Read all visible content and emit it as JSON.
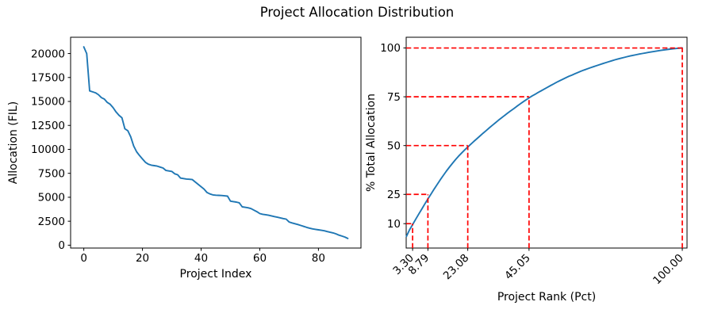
{
  "figure": {
    "title": "Project Allocation Distribution",
    "background": "#ffffff",
    "line_color": "#1f77b4",
    "ref_color": "#ff0000",
    "spine_color": "#000000"
  },
  "chart_data": [
    {
      "type": "line",
      "name": "allocation-by-project-index",
      "xlabel": "Project Index",
      "ylabel": "Allocation (FIL)",
      "color": "#1f77b4",
      "grid": false,
      "x_start": 0,
      "values": [
        20700,
        20000,
        16100,
        16000,
        15900,
        15700,
        15400,
        15250,
        14900,
        14700,
        14350,
        13900,
        13550,
        13300,
        12150,
        11950,
        11300,
        10350,
        9750,
        9350,
        9000,
        8650,
        8450,
        8350,
        8300,
        8250,
        8150,
        8050,
        7800,
        7750,
        7700,
        7450,
        7350,
        7000,
        6950,
        6900,
        6880,
        6850,
        6600,
        6350,
        6100,
        5850,
        5500,
        5350,
        5250,
        5220,
        5200,
        5180,
        5150,
        5120,
        4600,
        4550,
        4500,
        4420,
        4000,
        3950,
        3900,
        3820,
        3650,
        3500,
        3300,
        3220,
        3180,
        3120,
        3060,
        2980,
        2920,
        2850,
        2780,
        2720,
        2420,
        2320,
        2240,
        2160,
        2060,
        1960,
        1860,
        1780,
        1700,
        1650,
        1600,
        1550,
        1500,
        1420,
        1350,
        1280,
        1180,
        1050,
        950,
        850,
        700
      ],
      "xticks": [
        0,
        20,
        40,
        60,
        80
      ],
      "yticks": [
        0,
        2500,
        5000,
        7500,
        10000,
        12500,
        15000,
        17500,
        20000
      ],
      "xlim": [
        -4.5,
        94.5
      ],
      "ylim": [
        -300,
        21700
      ]
    },
    {
      "type": "line",
      "name": "cumulative-percent-of-total-allocation",
      "xlabel": "Project Rank (Pct)",
      "ylabel": "% Total Allocation",
      "color": "#1f77b4",
      "grid": false,
      "series_source": "cumulative percent of chart 0 values, x = rank/91*100",
      "yticks": [
        10,
        25,
        50,
        75,
        100
      ],
      "xticks": [
        {
          "pos": 3.3,
          "label": "3.30"
        },
        {
          "pos": 8.79,
          "label": "8.79"
        },
        {
          "pos": 23.08,
          "label": "23.08"
        },
        {
          "pos": 45.05,
          "label": "45.05"
        },
        {
          "pos": 100.0,
          "label": "100.00"
        }
      ],
      "reference_lines": [
        {
          "x": 3.3,
          "y": 10
        },
        {
          "x": 8.79,
          "y": 25
        },
        {
          "x": 23.08,
          "y": 50
        },
        {
          "x": 45.05,
          "y": 75
        },
        {
          "x": 100.0,
          "y": 100
        }
      ],
      "ref_style": "dashed",
      "xlim": [
        1.0,
        101.7
      ],
      "ylim": [
        -2.5,
        105.5
      ]
    }
  ]
}
